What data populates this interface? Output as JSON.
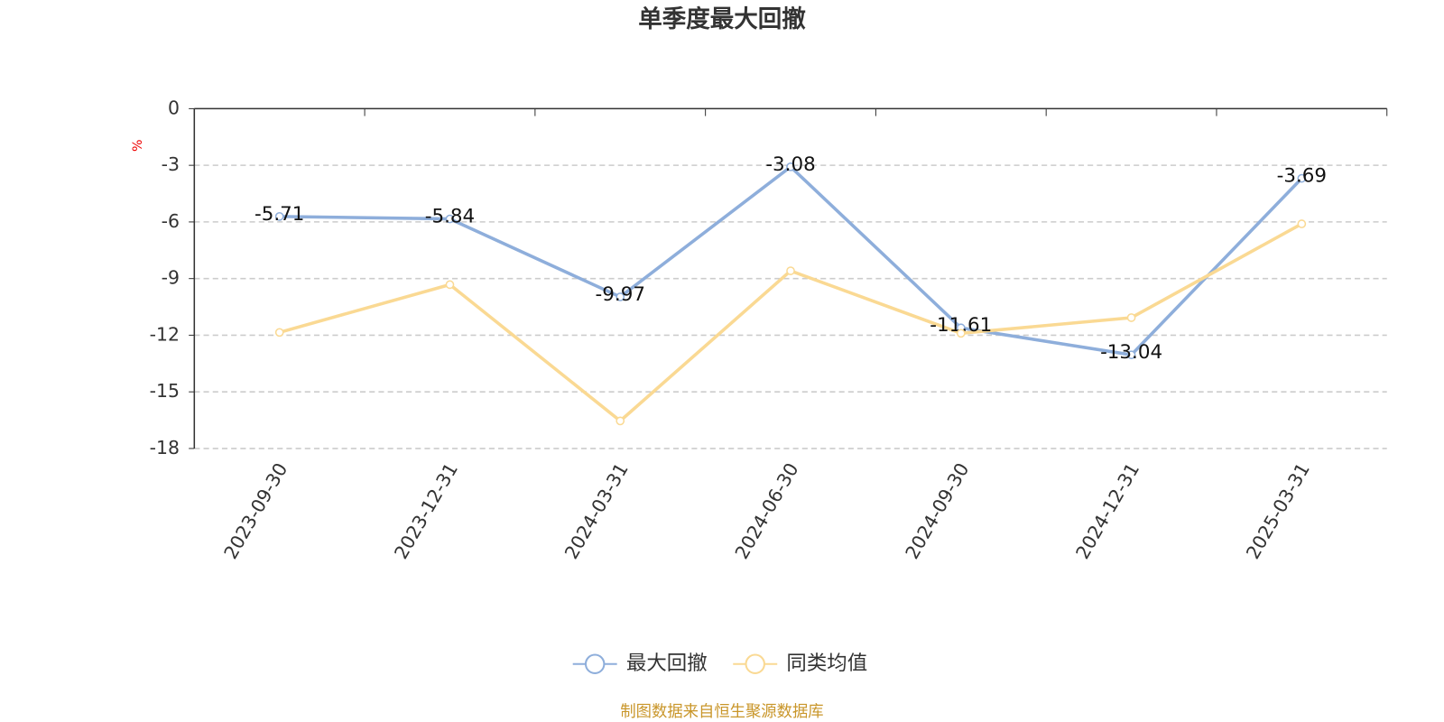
{
  "chart_data": {
    "type": "line",
    "title": "单季度最大回撤",
    "y_label": "%",
    "categories": [
      "2023-09-30",
      "2023-12-31",
      "2024-03-31",
      "2024-06-30",
      "2024-09-30",
      "2024-12-31",
      "2025-03-31"
    ],
    "series": [
      {
        "name": "最大回撤",
        "color": "#8eaedb",
        "values": [
          -5.71,
          -5.84,
          -9.97,
          -3.08,
          -11.61,
          -13.04,
          -3.69
        ],
        "data_labels": true
      },
      {
        "name": "同类均值",
        "color": "#fad993",
        "values": [
          -11.85,
          -9.32,
          -16.54,
          -8.59,
          -11.9,
          -11.07,
          -6.1
        ],
        "data_labels": false
      }
    ],
    "ylim": [
      -18,
      0
    ],
    "yticks": [
      0,
      -3,
      -6,
      -9,
      -12,
      -15,
      -18
    ],
    "grid": true,
    "legend": "bottom",
    "source": "制图数据来自恒生聚源数据库"
  }
}
